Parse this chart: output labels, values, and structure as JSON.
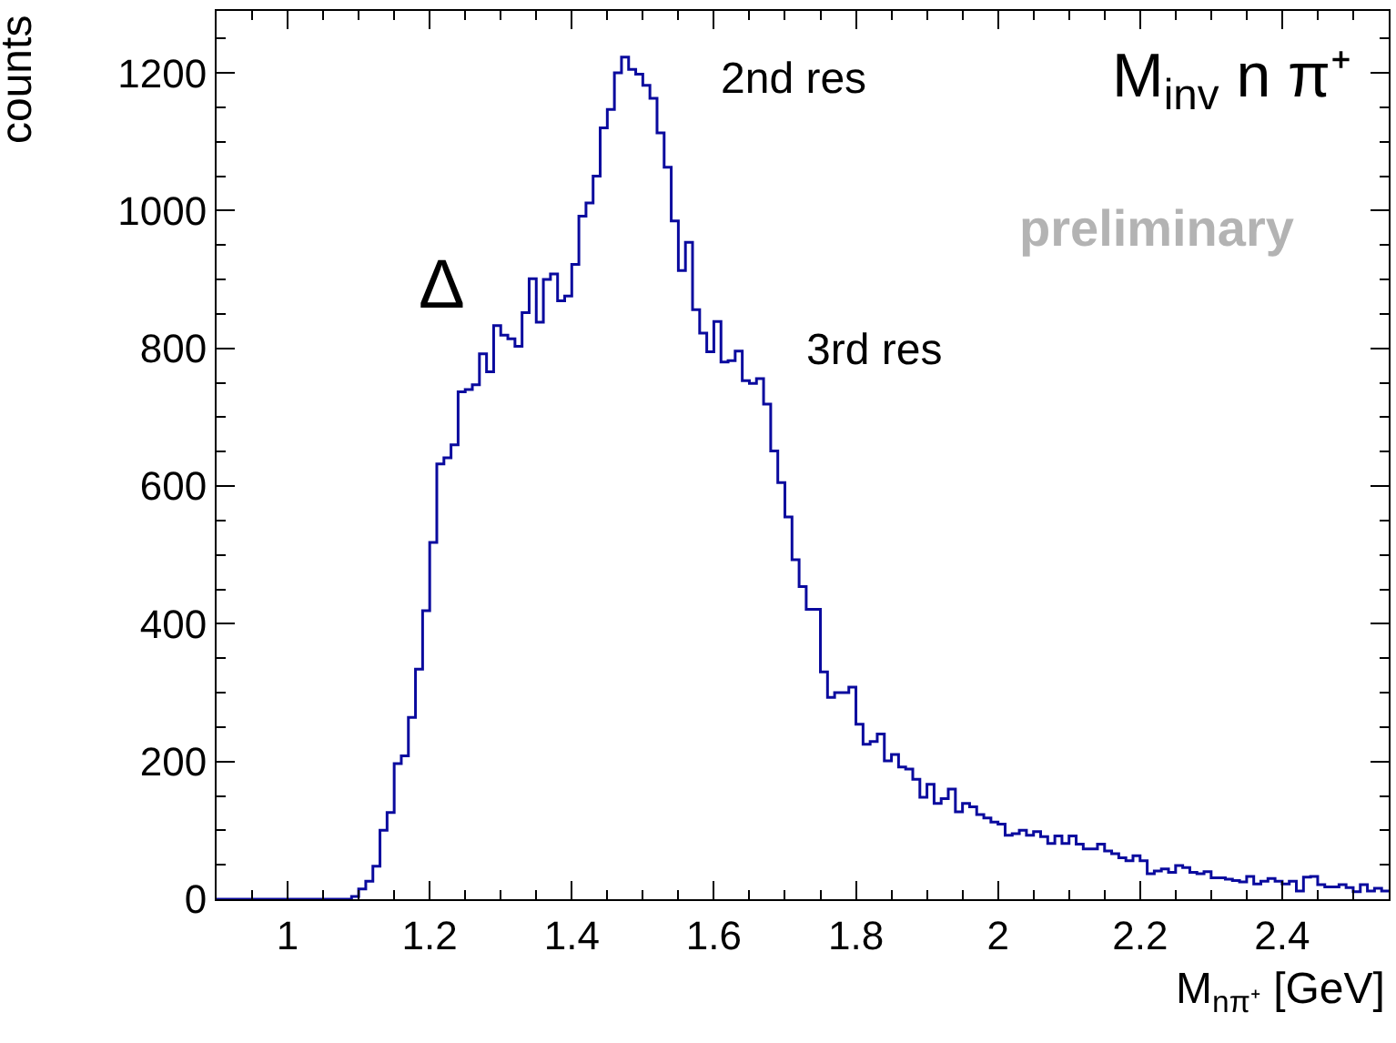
{
  "chart_data": {
    "type": "histogram",
    "title": "M$_{inv}$ n π⁺",
    "xlabel": "M$_{nπ⁺}$ [GeV]",
    "ylabel": "counts",
    "bins": [
      0.9,
      0.91,
      0.92,
      0.93,
      0.94,
      0.95,
      0.96,
      0.97,
      0.98,
      0.99,
      1.0,
      1.01,
      1.02,
      1.03,
      1.04,
      1.05,
      1.06,
      1.07,
      1.08,
      1.09,
      1.1,
      1.11,
      1.12,
      1.13,
      1.14,
      1.15,
      1.16,
      1.17,
      1.18,
      1.19,
      1.2,
      1.21,
      1.22,
      1.23,
      1.24,
      1.25,
      1.26,
      1.27,
      1.28,
      1.29,
      1.3,
      1.31,
      1.32,
      1.33,
      1.34,
      1.35,
      1.36,
      1.37,
      1.38,
      1.39,
      1.4,
      1.41,
      1.42,
      1.43,
      1.44,
      1.45,
      1.46,
      1.47,
      1.48,
      1.49,
      1.5,
      1.51,
      1.52,
      1.53,
      1.54,
      1.55,
      1.56,
      1.57,
      1.58,
      1.59,
      1.6,
      1.61,
      1.62,
      1.63,
      1.64,
      1.65,
      1.66,
      1.67,
      1.68,
      1.69,
      1.7,
      1.71,
      1.72,
      1.73,
      1.74,
      1.75,
      1.76,
      1.77,
      1.78,
      1.79,
      1.8,
      1.81,
      1.82,
      1.83,
      1.84,
      1.85,
      1.86,
      1.87,
      1.88,
      1.89,
      1.9,
      1.91,
      1.92,
      1.93,
      1.94,
      1.95,
      1.96,
      1.97,
      1.98,
      1.99,
      2.0,
      2.01,
      2.02,
      2.03,
      2.04,
      2.05,
      2.06,
      2.07,
      2.08,
      2.09,
      2.1,
      2.11,
      2.12,
      2.13,
      2.14,
      2.15,
      2.16,
      2.17,
      2.18,
      2.19,
      2.2,
      2.21,
      2.22,
      2.23,
      2.24,
      2.25,
      2.26,
      2.27,
      2.28,
      2.29,
      2.3,
      2.31,
      2.32,
      2.33,
      2.34,
      2.35,
      2.36,
      2.37,
      2.38,
      2.39,
      2.4,
      2.41,
      2.42,
      2.43,
      2.44,
      2.45,
      2.46,
      2.47,
      2.48,
      2.49,
      2.5,
      2.51,
      2.52,
      2.53,
      2.54,
      2.55
    ],
    "values": [
      0,
      0,
      0,
      0,
      0,
      0,
      0,
      0,
      0,
      0,
      0,
      0,
      0,
      0,
      0,
      0,
      0,
      0,
      0,
      4,
      15,
      26,
      48,
      100,
      126,
      197,
      208,
      264,
      334,
      419,
      518,
      632,
      641,
      660,
      737,
      740,
      747,
      792,
      766,
      833,
      819,
      814,
      803,
      852,
      901,
      838,
      900,
      908,
      869,
      876,
      922,
      992,
      1011,
      1050,
      1120,
      1147,
      1200,
      1223,
      1205,
      1198,
      1182,
      1163,
      1113,
      1063,
      985,
      913,
      954,
      856,
      822,
      795,
      839,
      780,
      782,
      796,
      753,
      749,
      756,
      719,
      651,
      605,
      555,
      493,
      454,
      421,
      421,
      330,
      293,
      300,
      300,
      308,
      254,
      225,
      229,
      240,
      201,
      210,
      192,
      189,
      174,
      148,
      167,
      139,
      146,
      160,
      127,
      139,
      134,
      123,
      118,
      112,
      109,
      93,
      95,
      100,
      93,
      98,
      91,
      81,
      92,
      81,
      92,
      80,
      73,
      73,
      80,
      70,
      66,
      60,
      56,
      63,
      56,
      37,
      41,
      44,
      39,
      49,
      46,
      39,
      37,
      40,
      31,
      31,
      29,
      27,
      25,
      33,
      22,
      26,
      30,
      26,
      22,
      26,
      12,
      32,
      33,
      21,
      18,
      18,
      21,
      17,
      11,
      21,
      12,
      16,
      12
    ],
    "color": "#0a0a9e",
    "xlim": [
      0.9,
      2.55
    ],
    "xticks": [
      1,
      1.2,
      1.4,
      1.6,
      1.8,
      2,
      2.2,
      2.4
    ],
    "ylim": [
      0,
      1290
    ],
    "yticks": [
      0,
      200,
      400,
      600,
      800,
      1000,
      1200
    ],
    "annotations": [
      "Δ",
      "2nd res",
      "3rd res",
      "preliminary"
    ]
  }
}
